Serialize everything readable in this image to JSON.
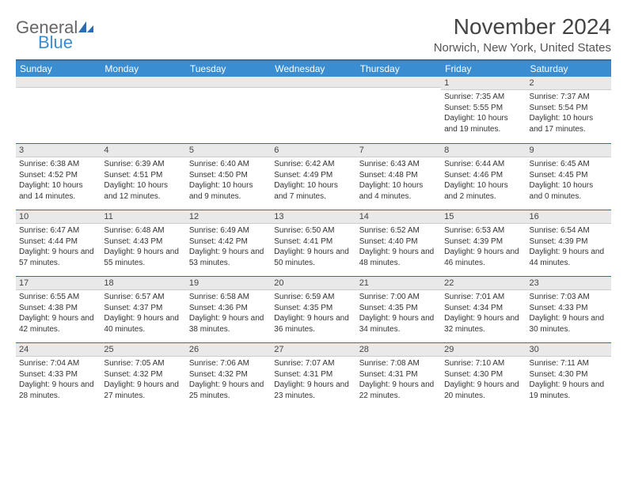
{
  "brand": {
    "line1": "General",
    "line2": "Blue"
  },
  "header": {
    "month_title": "November 2024",
    "location": "Norwich, New York, United States"
  },
  "colors": {
    "header_bg": "#3a8dd0",
    "rule": "#2f6fa8",
    "stripe": "#e9e9e9",
    "text": "#333333"
  },
  "daynames": [
    "Sunday",
    "Monday",
    "Tuesday",
    "Wednesday",
    "Thursday",
    "Friday",
    "Saturday"
  ],
  "days": {
    "1": {
      "sunrise": "7:35 AM",
      "sunset": "5:55 PM",
      "daylight": "10 hours and 19 minutes."
    },
    "2": {
      "sunrise": "7:37 AM",
      "sunset": "5:54 PM",
      "daylight": "10 hours and 17 minutes."
    },
    "3": {
      "sunrise": "6:38 AM",
      "sunset": "4:52 PM",
      "daylight": "10 hours and 14 minutes."
    },
    "4": {
      "sunrise": "6:39 AM",
      "sunset": "4:51 PM",
      "daylight": "10 hours and 12 minutes."
    },
    "5": {
      "sunrise": "6:40 AM",
      "sunset": "4:50 PM",
      "daylight": "10 hours and 9 minutes."
    },
    "6": {
      "sunrise": "6:42 AM",
      "sunset": "4:49 PM",
      "daylight": "10 hours and 7 minutes."
    },
    "7": {
      "sunrise": "6:43 AM",
      "sunset": "4:48 PM",
      "daylight": "10 hours and 4 minutes."
    },
    "8": {
      "sunrise": "6:44 AM",
      "sunset": "4:46 PM",
      "daylight": "10 hours and 2 minutes."
    },
    "9": {
      "sunrise": "6:45 AM",
      "sunset": "4:45 PM",
      "daylight": "10 hours and 0 minutes."
    },
    "10": {
      "sunrise": "6:47 AM",
      "sunset": "4:44 PM",
      "daylight": "9 hours and 57 minutes."
    },
    "11": {
      "sunrise": "6:48 AM",
      "sunset": "4:43 PM",
      "daylight": "9 hours and 55 minutes."
    },
    "12": {
      "sunrise": "6:49 AM",
      "sunset": "4:42 PM",
      "daylight": "9 hours and 53 minutes."
    },
    "13": {
      "sunrise": "6:50 AM",
      "sunset": "4:41 PM",
      "daylight": "9 hours and 50 minutes."
    },
    "14": {
      "sunrise": "6:52 AM",
      "sunset": "4:40 PM",
      "daylight": "9 hours and 48 minutes."
    },
    "15": {
      "sunrise": "6:53 AM",
      "sunset": "4:39 PM",
      "daylight": "9 hours and 46 minutes."
    },
    "16": {
      "sunrise": "6:54 AM",
      "sunset": "4:39 PM",
      "daylight": "9 hours and 44 minutes."
    },
    "17": {
      "sunrise": "6:55 AM",
      "sunset": "4:38 PM",
      "daylight": "9 hours and 42 minutes."
    },
    "18": {
      "sunrise": "6:57 AM",
      "sunset": "4:37 PM",
      "daylight": "9 hours and 40 minutes."
    },
    "19": {
      "sunrise": "6:58 AM",
      "sunset": "4:36 PM",
      "daylight": "9 hours and 38 minutes."
    },
    "20": {
      "sunrise": "6:59 AM",
      "sunset": "4:35 PM",
      "daylight": "9 hours and 36 minutes."
    },
    "21": {
      "sunrise": "7:00 AM",
      "sunset": "4:35 PM",
      "daylight": "9 hours and 34 minutes."
    },
    "22": {
      "sunrise": "7:01 AM",
      "sunset": "4:34 PM",
      "daylight": "9 hours and 32 minutes."
    },
    "23": {
      "sunrise": "7:03 AM",
      "sunset": "4:33 PM",
      "daylight": "9 hours and 30 minutes."
    },
    "24": {
      "sunrise": "7:04 AM",
      "sunset": "4:33 PM",
      "daylight": "9 hours and 28 minutes."
    },
    "25": {
      "sunrise": "7:05 AM",
      "sunset": "4:32 PM",
      "daylight": "9 hours and 27 minutes."
    },
    "26": {
      "sunrise": "7:06 AM",
      "sunset": "4:32 PM",
      "daylight": "9 hours and 25 minutes."
    },
    "27": {
      "sunrise": "7:07 AM",
      "sunset": "4:31 PM",
      "daylight": "9 hours and 23 minutes."
    },
    "28": {
      "sunrise": "7:08 AM",
      "sunset": "4:31 PM",
      "daylight": "9 hours and 22 minutes."
    },
    "29": {
      "sunrise": "7:10 AM",
      "sunset": "4:30 PM",
      "daylight": "9 hours and 20 minutes."
    },
    "30": {
      "sunrise": "7:11 AM",
      "sunset": "4:30 PM",
      "daylight": "9 hours and 19 minutes."
    }
  },
  "layout": {
    "first_weekday_index": 5,
    "num_days": 30
  },
  "labels": {
    "sunrise": "Sunrise:",
    "sunset": "Sunset:",
    "daylight": "Daylight:"
  }
}
